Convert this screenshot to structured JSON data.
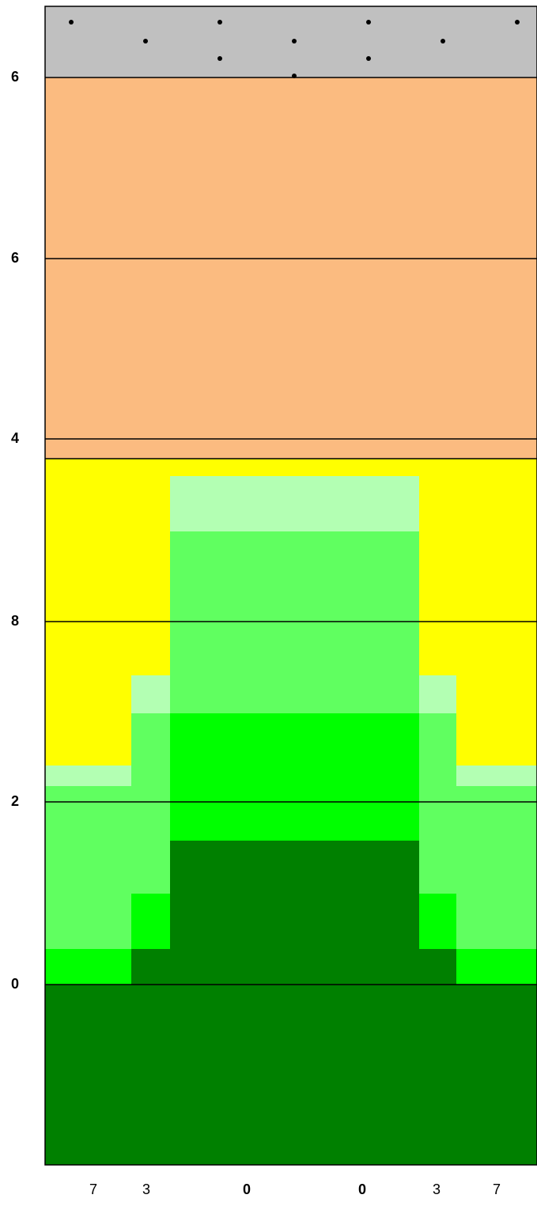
{
  "left_labels": [
    "6",
    "6",
    "4",
    "8",
    "2",
    "0"
  ],
  "bottom_labels": [
    "7",
    "3",
    "0",
    "0",
    "3",
    "7"
  ]
}
